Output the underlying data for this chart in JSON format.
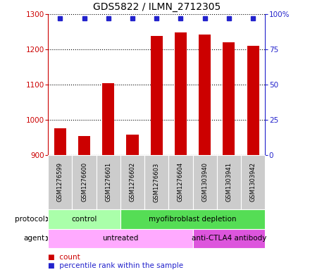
{
  "title": "GDS5822 / ILMN_2712305",
  "samples": [
    "GSM1276599",
    "GSM1276600",
    "GSM1276601",
    "GSM1276602",
    "GSM1276603",
    "GSM1276604",
    "GSM1303940",
    "GSM1303941",
    "GSM1303942"
  ],
  "counts": [
    975,
    955,
    1103,
    958,
    1238,
    1248,
    1242,
    1220,
    1210
  ],
  "percentile_ranks": [
    97,
    97,
    97,
    97,
    97,
    97,
    97,
    97,
    97
  ],
  "ylim_left": [
    900,
    1300
  ],
  "ylim_right": [
    0,
    100
  ],
  "yticks_left": [
    900,
    1000,
    1100,
    1200,
    1300
  ],
  "yticks_right": [
    0,
    25,
    50,
    75,
    100
  ],
  "bar_color": "#cc0000",
  "dot_color": "#2222cc",
  "bar_width": 0.5,
  "protocol_labels": [
    "control",
    "myofibroblast depletion"
  ],
  "protocol_ranges": [
    [
      0,
      3
    ],
    [
      3,
      9
    ]
  ],
  "protocol_colors": [
    "#aaffaa",
    "#55dd55"
  ],
  "agent_labels": [
    "untreated",
    "anti-CTLA4 antibody"
  ],
  "agent_ranges": [
    [
      0,
      6
    ],
    [
      6,
      9
    ]
  ],
  "agent_colors": [
    "#ffaaff",
    "#dd55dd"
  ],
  "legend_count_color": "#cc0000",
  "legend_percentile_color": "#2222cc",
  "left_axis_color": "#cc0000",
  "right_axis_color": "#2222cc",
  "sample_box_color": "#cccccc",
  "n_samples": 9
}
